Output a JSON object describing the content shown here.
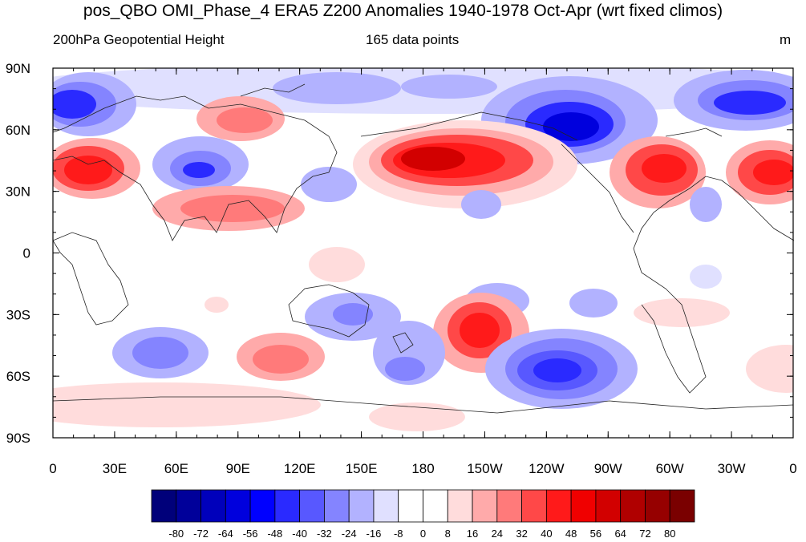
{
  "title": "pos_QBO OMI_Phase_4 ERA5 Z200 Anomalies 1940-1978 Oct-Apr (wrt fixed climos)",
  "subtitle_left": "200hPa Geopotential Height",
  "subtitle_center": "165 data points",
  "units": "m",
  "lat_labels": [
    "90N",
    "60N",
    "30N",
    "0",
    "30S",
    "60S",
    "90S"
  ],
  "lon_labels": [
    "0",
    "30E",
    "60E",
    "90E",
    "120E",
    "150E",
    "180",
    "150W",
    "120W",
    "90W",
    "60W",
    "30W",
    "0"
  ],
  "colorbar": {
    "labels": [
      "-80",
      "-72",
      "-64",
      "-56",
      "-48",
      "-40",
      "-32",
      "-24",
      "-16",
      "-8",
      "0",
      "8",
      "16",
      "24",
      "32",
      "40",
      "48",
      "56",
      "64",
      "72",
      "80"
    ],
    "colors": [
      "#00007a",
      "#00009a",
      "#0000bb",
      "#0000dd",
      "#0000ff",
      "#2a2aff",
      "#5858ff",
      "#8484ff",
      "#b2b2ff",
      "#e0e0ff",
      "#ffffff",
      "#ffffff",
      "#ffdcdc",
      "#ffaaaa",
      "#ff7a7a",
      "#ff4848",
      "#ff1a1a",
      "#f00000",
      "#d20000",
      "#b00000",
      "#960000",
      "#7a0000"
    ]
  },
  "map_colors": {
    "neg_weak": "#e0e0ff",
    "neg_light": "#b2b2ff",
    "neg_mid": "#8484ff",
    "neg_mid2": "#5858ff",
    "neg_strong": "#2a2aff",
    "neg_deep": "#0000dd",
    "pos_weak": "#ffdcdc",
    "pos_light": "#ffaaaa",
    "pos_mid": "#ff7a7a",
    "pos_mid2": "#ff4848",
    "pos_strong": "#ff1a1a",
    "pos_deep": "#d20000",
    "pos_core": "#b00000"
  }
}
